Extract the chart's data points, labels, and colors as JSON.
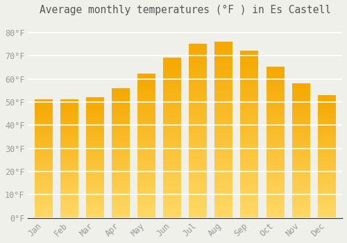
{
  "title": "Average monthly temperatures (°F ) in Es Castell",
  "months": [
    "Jan",
    "Feb",
    "Mar",
    "Apr",
    "May",
    "Jun",
    "Jul",
    "Aug",
    "Sep",
    "Oct",
    "Nov",
    "Dec"
  ],
  "values": [
    51,
    51,
    52,
    56,
    62,
    69,
    75,
    76,
    72,
    65,
    58,
    53
  ],
  "bar_color_top": "#F5A800",
  "bar_color_bottom": "#FFD966",
  "yticks": [
    0,
    10,
    20,
    30,
    40,
    50,
    60,
    70,
    80
  ],
  "ytick_labels": [
    "0°F",
    "10°F",
    "20°F",
    "30°F",
    "40°F",
    "50°F",
    "60°F",
    "70°F",
    "80°F"
  ],
  "ylim": [
    0,
    85
  ],
  "background_color": "#f0f0eb",
  "grid_color": "#ffffff",
  "title_fontsize": 10.5,
  "tick_fontsize": 8.5,
  "tick_color": "#999999",
  "font_family": "monospace",
  "bar_width": 0.7
}
